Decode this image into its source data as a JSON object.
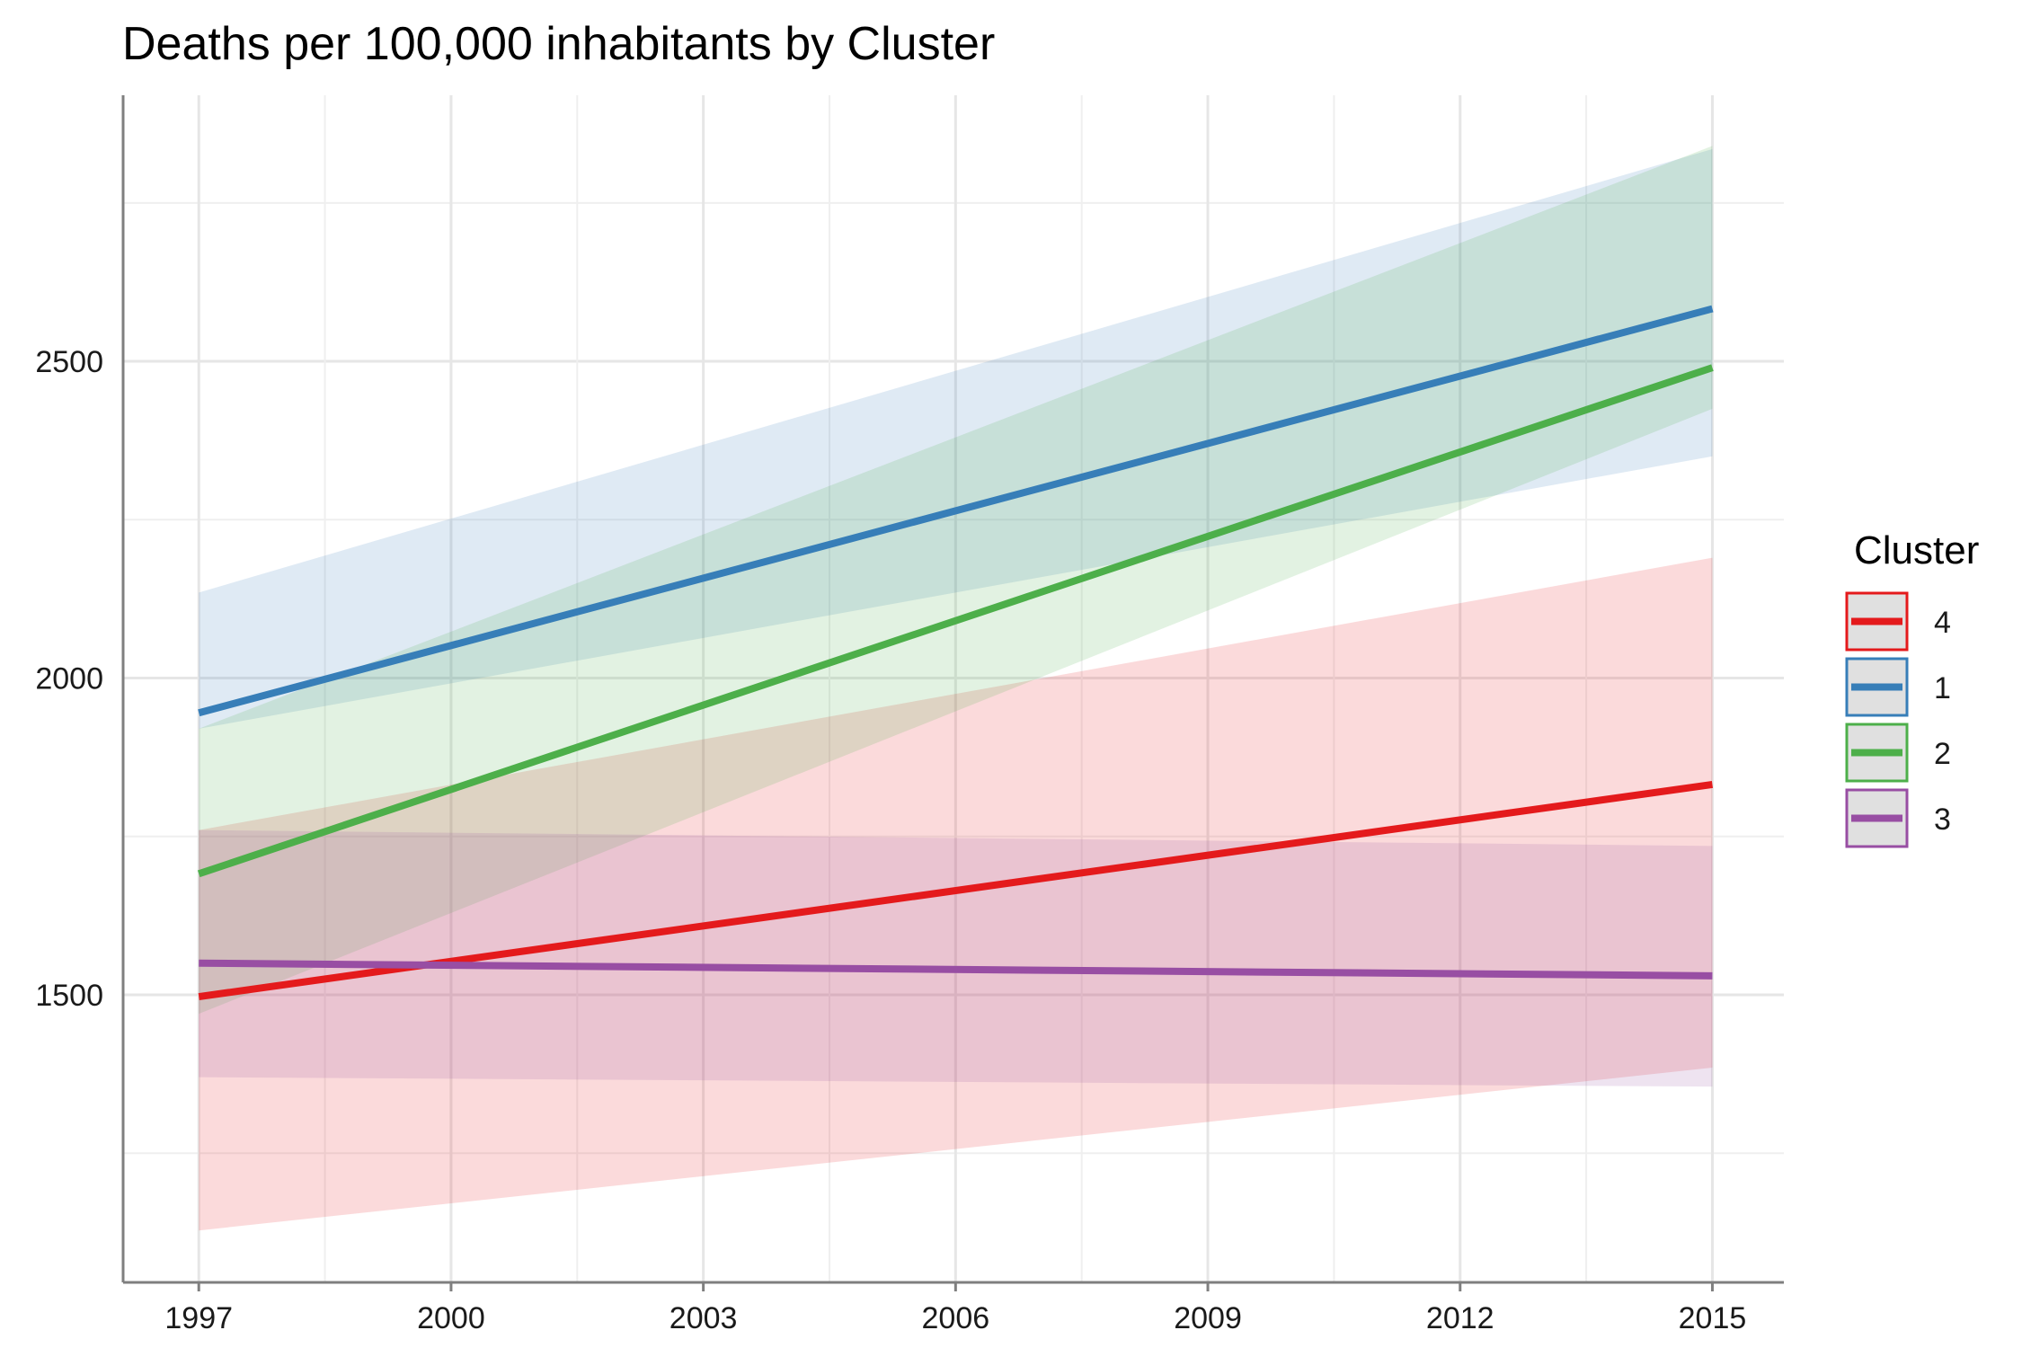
{
  "chart_data": {
    "type": "line",
    "title": "Deaths per 100,000 inhabitants by Cluster",
    "xlabel": "",
    "ylabel": "",
    "x_ticks": [
      1997,
      2000,
      2003,
      2006,
      2009,
      2012,
      2015
    ],
    "y_ticks": [
      1500,
      2000,
      2500
    ],
    "xlim": [
      1996.1,
      2015.85
    ],
    "ylim": [
      1046,
      2920
    ],
    "grid": true,
    "legend": {
      "title": "Cluster",
      "position": "right"
    },
    "series": [
      {
        "name": "4",
        "color": "#E41A1C",
        "x": [
          1997,
          2015
        ],
        "y": [
          1497,
          1832
        ],
        "lower": [
          1128,
          1385
        ],
        "upper": [
          1760,
          2190
        ]
      },
      {
        "name": "1",
        "color": "#377EB8",
        "x": [
          1997,
          2015
        ],
        "y": [
          1945,
          2583
        ],
        "lower": [
          1920,
          2350
        ],
        "upper": [
          2135,
          2835
        ]
      },
      {
        "name": "2",
        "color": "#4DAF4A",
        "x": [
          1997,
          2015
        ],
        "y": [
          1691,
          2490
        ],
        "lower": [
          1470,
          2425
        ],
        "upper": [
          1920,
          2840
        ]
      },
      {
        "name": "3",
        "color": "#984EA3",
        "x": [
          1997,
          2015
        ],
        "y": [
          1550,
          1530
        ],
        "lower": [
          1370,
          1355
        ],
        "upper": [
          1760,
          1735
        ]
      }
    ]
  }
}
